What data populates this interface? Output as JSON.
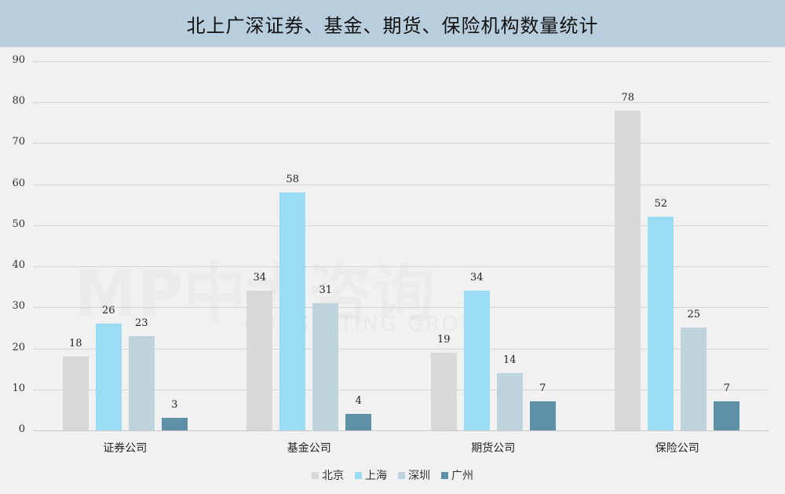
{
  "header": {
    "title": "北上广深证券、基金、期货、保险机构数量统计"
  },
  "watermark": {
    "main": "MP中大咨询",
    "sub": "CONSULTING GROUP"
  },
  "colors": {
    "beijing": "#d8d8d8",
    "shanghai": "#99dcf4",
    "shenzhen": "#bfd3dd",
    "guangzhou": "#5e90a8",
    "title_bg": "#b8cedc",
    "grid": "#d4d4d4"
  },
  "chart_data": {
    "type": "bar",
    "title": "北上广深证券、基金、期货、保险机构数量统计",
    "xlabel": "",
    "ylabel": "",
    "ylim": [
      0,
      90
    ],
    "yticks": [
      0,
      10,
      20,
      30,
      40,
      50,
      60,
      70,
      80,
      90
    ],
    "grid": true,
    "legend_position": "bottom",
    "categories": [
      "证券公司",
      "基金公司",
      "期货公司",
      "保险公司"
    ],
    "series": [
      {
        "name": "北京",
        "color": "#d8d8d8",
        "values": [
          18,
          34,
          19,
          78
        ]
      },
      {
        "name": "上海",
        "color": "#99dcf4",
        "values": [
          26,
          58,
          34,
          52
        ]
      },
      {
        "name": "深圳",
        "color": "#bfd3dd",
        "values": [
          23,
          31,
          14,
          25
        ]
      },
      {
        "name": "广州",
        "color": "#5e90a8",
        "values": [
          3,
          4,
          7,
          7
        ]
      }
    ]
  }
}
